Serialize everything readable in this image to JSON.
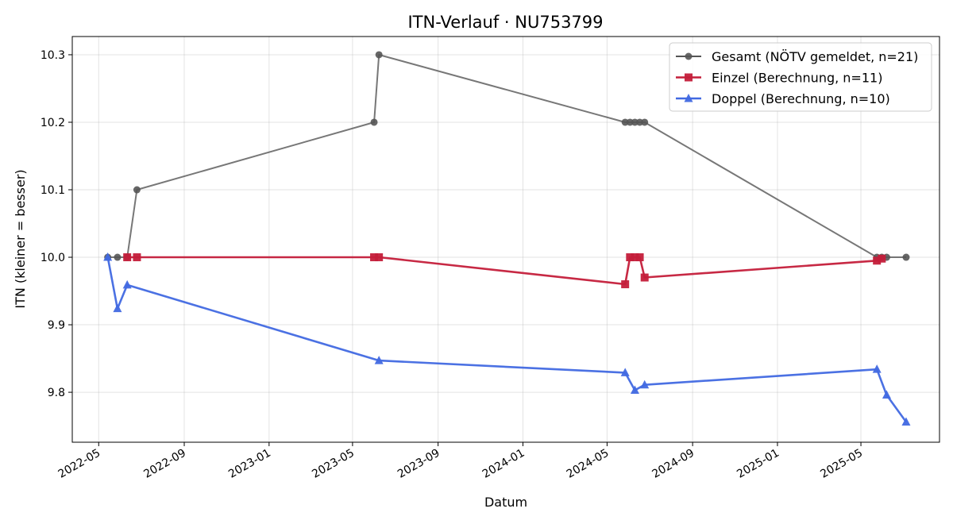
{
  "chart_data": {
    "type": "line",
    "title": "ITN-Verlauf · NU753799",
    "xlabel": "Datum",
    "ylabel": "ITN  (kleiner = besser)",
    "x_range": [
      "2022-03-24",
      "2025-08-22"
    ],
    "ylim": [
      9.726,
      10.327
    ],
    "x_ticks": [
      "2022-05",
      "2022-09",
      "2023-01",
      "2023-05",
      "2023-09",
      "2024-01",
      "2024-05",
      "2024-09",
      "2025-01",
      "2025-05"
    ],
    "y_ticks": [
      "9.8",
      "9.9",
      "10.0",
      "10.1",
      "10.2",
      "10.3"
    ],
    "grid": true,
    "legend_position": "top-right",
    "series": [
      {
        "name": "Gesamt (NÖTV gemeldet, n=21)",
        "color": "#555555",
        "marker": "circle",
        "x": [
          "2022-05-14",
          "2022-05-28",
          "2022-06-11",
          "2022-06-25",
          "2023-06-01",
          "2023-06-08",
          "2024-05-27",
          "2024-06-03",
          "2024-06-10",
          "2024-06-17",
          "2024-06-24",
          "2025-05-24",
          "2025-05-31",
          "2025-06-07",
          "2025-07-05"
        ],
        "y": [
          10.0,
          10.0,
          10.0,
          10.1,
          10.2,
          10.3,
          10.2,
          10.2,
          10.2,
          10.2,
          10.2,
          10.0,
          10.0,
          10.0,
          10.0
        ]
      },
      {
        "name": "Einzel (Berechnung, n=11)",
        "color": "#c41e3a",
        "marker": "square",
        "x": [
          "2022-06-11",
          "2022-06-25",
          "2023-06-01",
          "2023-06-08",
          "2024-05-27",
          "2024-06-03",
          "2024-06-10",
          "2024-06-17",
          "2024-06-24",
          "2025-05-24",
          "2025-05-31"
        ],
        "y": [
          10.0,
          10.0,
          10.0,
          10.0,
          9.96,
          10.0,
          10.0,
          10.0,
          9.97,
          9.995,
          9.998
        ]
      },
      {
        "name": "Doppel (Berechnung, n=10)",
        "color": "#4169e1",
        "marker": "triangle",
        "x": [
          "2022-05-14",
          "2022-05-28",
          "2022-06-11",
          "2023-06-08",
          "2024-05-27",
          "2024-06-10",
          "2024-06-24",
          "2025-05-24",
          "2025-06-07",
          "2025-07-05"
        ],
        "y": [
          10.0,
          9.924,
          9.959,
          9.847,
          9.829,
          9.803,
          9.811,
          9.834,
          9.796,
          9.756
        ]
      }
    ]
  }
}
